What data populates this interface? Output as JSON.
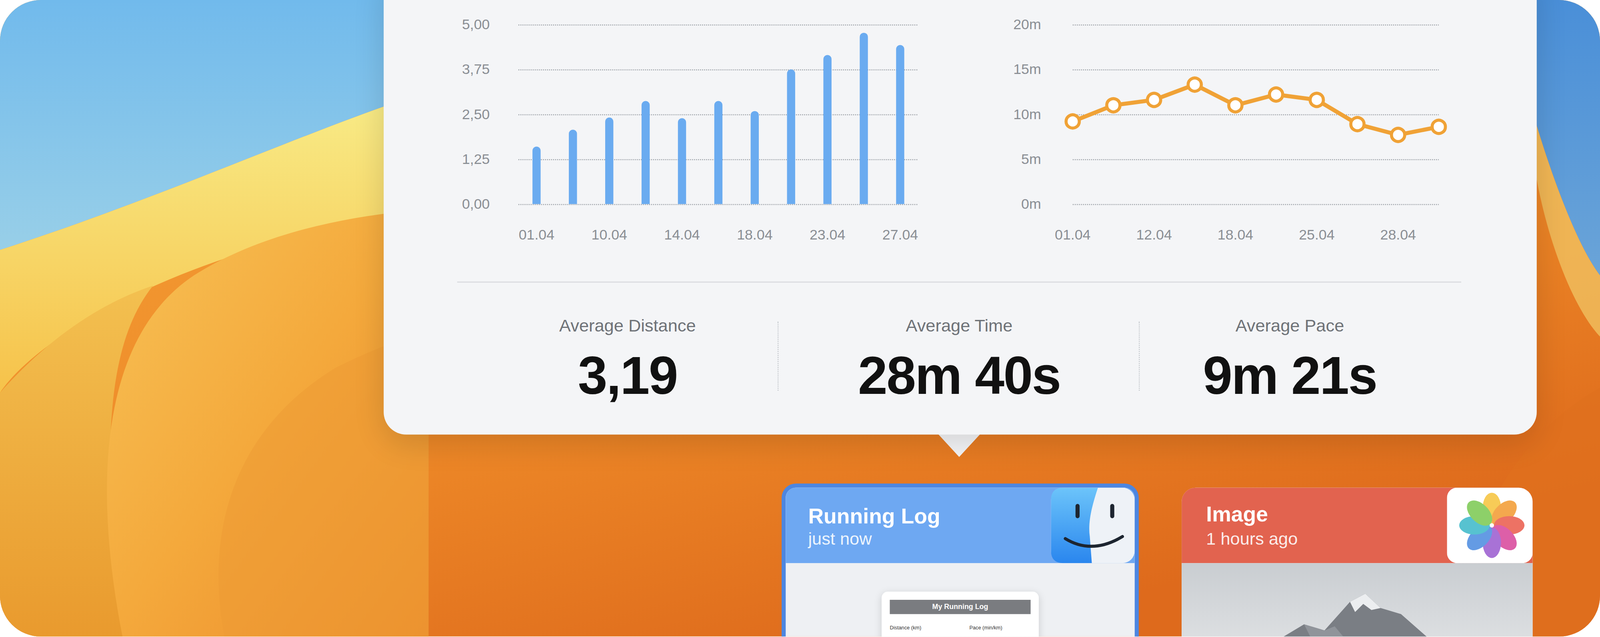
{
  "chart_data": [
    {
      "type": "bar",
      "categories": [
        "01.04",
        null,
        "10.04",
        null,
        "14.04",
        null,
        "18.04",
        null,
        "23.04",
        null,
        "27.04"
      ],
      "values": [
        1.6,
        2.07,
        2.41,
        2.87,
        2.39,
        2.87,
        2.59,
        3.75,
        4.15,
        4.77,
        4.43
      ],
      "color": "#6aabf0",
      "ylim": [
        0,
        5
      ],
      "yticks": [
        {
          "value": 0,
          "label": "0,00"
        },
        {
          "value": 1.25,
          "label": "1,25"
        },
        {
          "value": 2.5,
          "label": "2,50"
        },
        {
          "value": 3.75,
          "label": "3,75"
        },
        {
          "value": 5,
          "label": "5,00"
        }
      ],
      "grid": true
    },
    {
      "type": "line",
      "categories": [
        "01.04",
        null,
        "12.04",
        null,
        "18.04",
        null,
        "25.04",
        null,
        "28.04",
        null
      ],
      "values": [
        9.2,
        11.0,
        11.6,
        13.3,
        11.0,
        12.2,
        11.6,
        8.9,
        7.7,
        8.6
      ],
      "color": "#f0a236",
      "marker": "circle",
      "line_style": "solid",
      "ylim": [
        0,
        20
      ],
      "yticks": [
        {
          "value": 0,
          "label": "0m"
        },
        {
          "value": 5,
          "label": "5m"
        },
        {
          "value": 10,
          "label": "10m"
        },
        {
          "value": 15,
          "label": "15m"
        },
        {
          "value": 20,
          "label": "20m"
        }
      ],
      "grid": true
    }
  ],
  "stats": [
    {
      "label": "Average Distance",
      "value": "3,19"
    },
    {
      "label": "Average Time",
      "value": "28m 40s"
    },
    {
      "label": "Average Pace",
      "value": "9m 21s"
    }
  ],
  "cards": [
    {
      "title": "Running Log",
      "subtitle": "just now",
      "document": {
        "title": "My Running Log",
        "columns": [
          "Distance (km)",
          "Pace (min/km)"
        ]
      }
    },
    {
      "title": "Image",
      "subtitle": "1 hours ago"
    }
  ]
}
